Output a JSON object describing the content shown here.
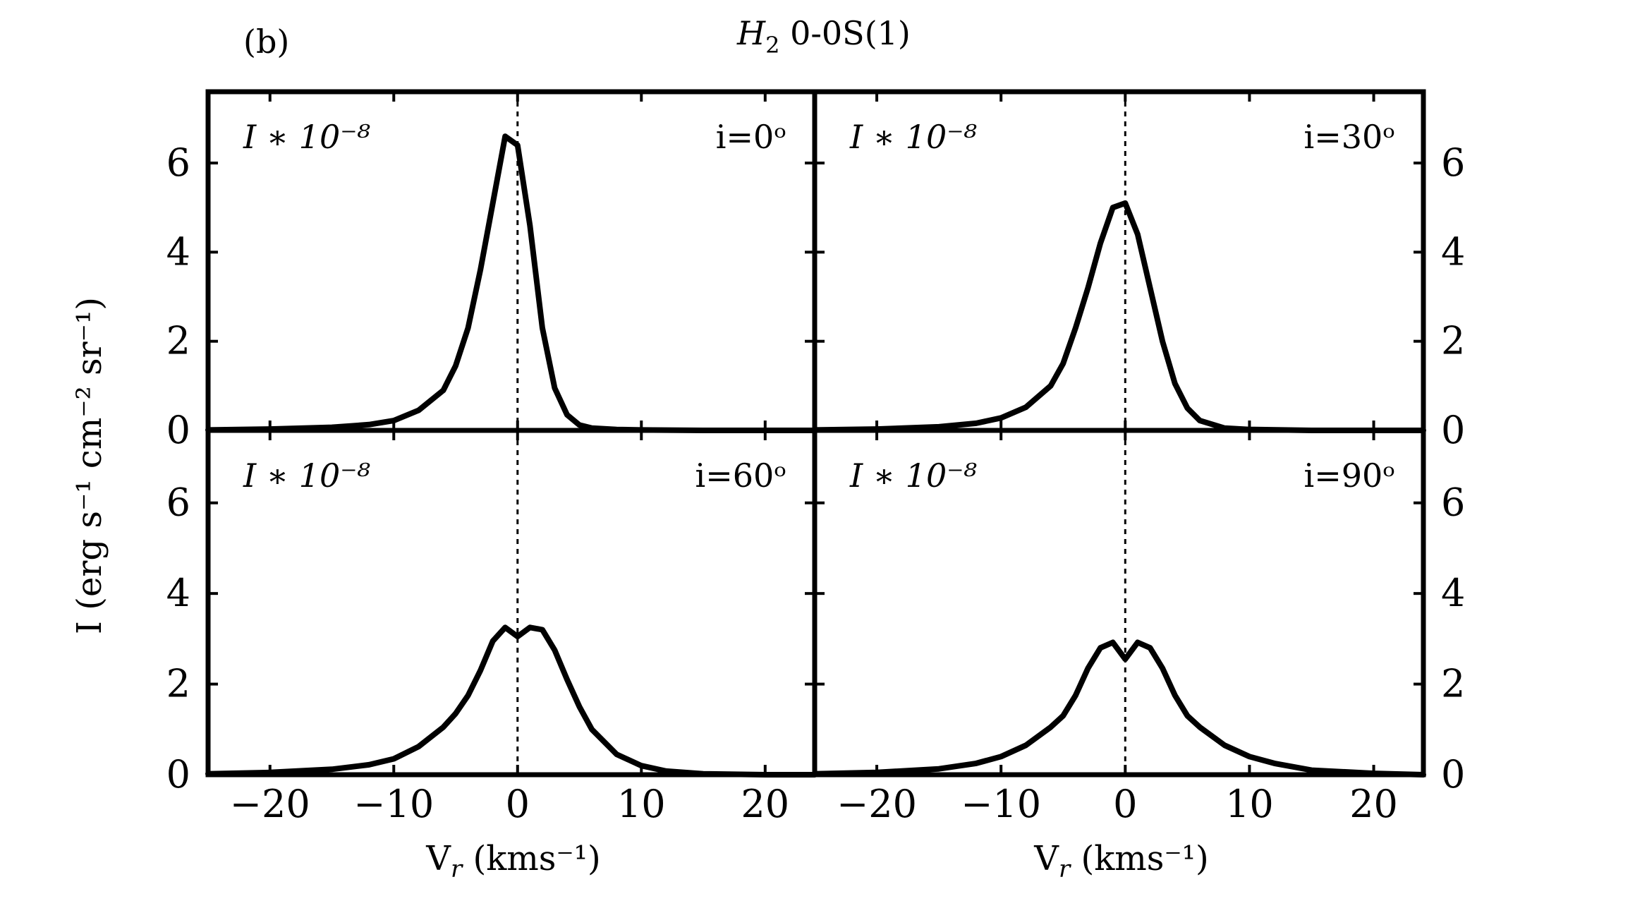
{
  "figure": {
    "panel_tag": "(b)",
    "title_prefix": "H",
    "title_subscript": "2",
    "title_suffix": " 0-0S(1)",
    "ylabel": "I (erg s⁻¹ cm⁻² sr⁻¹)",
    "xlabel_main": "V",
    "xlabel_sub": "r",
    "xlabel_units": " (kms⁻¹)"
  },
  "chart_data": {
    "type": "line",
    "xlim": [
      -25,
      24
    ],
    "ylim": [
      0,
      7.6
    ],
    "x_ticks": [
      -20,
      -10,
      0,
      10,
      20
    ],
    "x_tick_labels": [
      "−20",
      "−10",
      "0",
      "10",
      "20"
    ],
    "y_ticks": [
      0,
      2,
      4,
      6
    ],
    "y_tick_labels": [
      "0",
      "2",
      "4",
      "6"
    ],
    "reference_line_x": 0,
    "grid": false,
    "panels": [
      {
        "scale_label": "I ∗ 10⁻⁸",
        "inclination_label": "i=0ᵒ",
        "x": [
          -25,
          -20,
          -15,
          -12,
          -10,
          -8,
          -6,
          -5,
          -4,
          -3,
          -2,
          -1,
          0,
          1,
          2,
          3,
          4,
          5,
          6,
          8,
          10,
          15,
          20,
          24
        ],
        "y": [
          0.01,
          0.03,
          0.07,
          0.13,
          0.22,
          0.45,
          0.9,
          1.45,
          2.3,
          3.6,
          5.1,
          6.6,
          6.4,
          4.6,
          2.3,
          0.95,
          0.35,
          0.12,
          0.05,
          0.02,
          0.01,
          0.0,
          0.0,
          0.0
        ]
      },
      {
        "scale_label": "I ∗ 10⁻⁸",
        "inclination_label": "i=30ᵒ",
        "x": [
          -25,
          -20,
          -15,
          -12,
          -10,
          -8,
          -6,
          -5,
          -4,
          -3,
          -2,
          -1,
          0,
          1,
          2,
          3,
          4,
          5,
          6,
          8,
          10,
          15,
          20,
          24
        ],
        "y": [
          0.01,
          0.03,
          0.08,
          0.16,
          0.28,
          0.52,
          1.0,
          1.5,
          2.3,
          3.2,
          4.2,
          5.0,
          5.1,
          4.4,
          3.2,
          2.0,
          1.05,
          0.5,
          0.22,
          0.05,
          0.02,
          0.0,
          0.0,
          0.0
        ]
      },
      {
        "scale_label": "I ∗ 10⁻⁸",
        "inclination_label": "i=60ᵒ",
        "x": [
          -25,
          -20,
          -15,
          -12,
          -10,
          -8,
          -6,
          -5,
          -4,
          -3,
          -2,
          -1,
          0,
          1,
          2,
          3,
          4,
          5,
          6,
          8,
          10,
          12,
          15,
          20,
          24
        ],
        "y": [
          0.02,
          0.05,
          0.12,
          0.22,
          0.35,
          0.62,
          1.05,
          1.35,
          1.75,
          2.3,
          2.95,
          3.25,
          3.05,
          3.25,
          3.2,
          2.75,
          2.1,
          1.5,
          1.0,
          0.45,
          0.2,
          0.08,
          0.02,
          0.0,
          0.0
        ]
      },
      {
        "scale_label": "I ∗ 10⁻⁸",
        "inclination_label": "i=90ᵒ",
        "x": [
          -25,
          -20,
          -15,
          -12,
          -10,
          -8,
          -6,
          -5,
          -4,
          -3,
          -2,
          -1,
          0,
          1,
          2,
          3,
          4,
          5,
          6,
          8,
          10,
          12,
          15,
          20,
          24
        ],
        "y": [
          0.02,
          0.05,
          0.13,
          0.25,
          0.4,
          0.65,
          1.05,
          1.3,
          1.75,
          2.35,
          2.8,
          2.92,
          2.55,
          2.92,
          2.8,
          2.35,
          1.75,
          1.3,
          1.05,
          0.65,
          0.4,
          0.25,
          0.1,
          0.03,
          0.0
        ]
      }
    ]
  }
}
